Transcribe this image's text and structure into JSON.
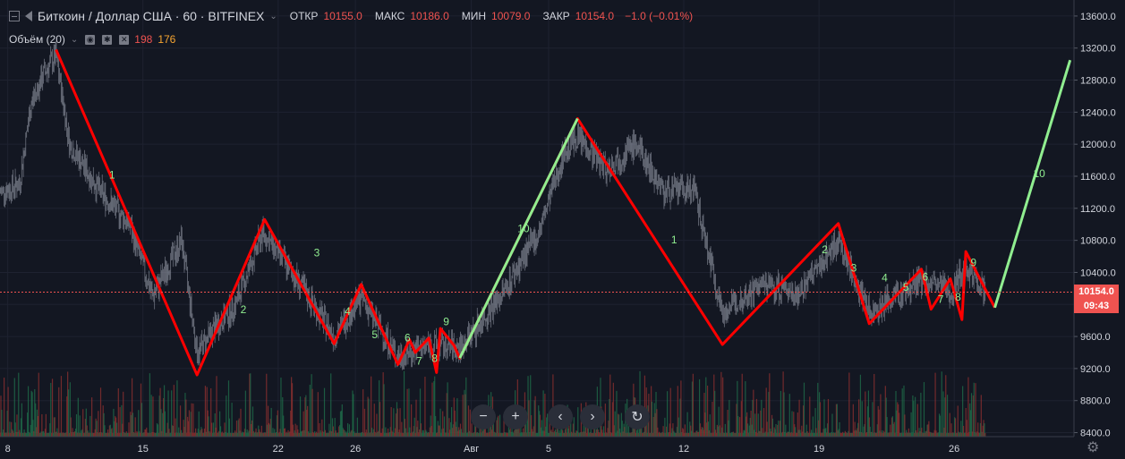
{
  "header": {
    "symbol": "Биткоин / Доллар США · 60 · BITFINEX",
    "open_label": "ОТКР",
    "open_value": "10155.0",
    "high_label": "МАКС",
    "high_value": "10186.0",
    "low_label": "МИН",
    "low_value": "10079.0",
    "close_label": "ЗАКР",
    "close_value": "10154.0",
    "change": "−1.0 (−0.01%)"
  },
  "volume_indicator": {
    "name": "Объём (20)",
    "value_red": "198",
    "value_orange": "176"
  },
  "price_tags": {
    "last_price": "10154.0",
    "countdown": "09:43"
  },
  "toolbar": {
    "zoom_out": "−",
    "zoom_in": "+",
    "scroll_left": "‹",
    "scroll_right": "›",
    "reset": "↻"
  },
  "colors": {
    "background": "#131722",
    "grid": "#1e2230",
    "axis_text": "#d1d4dc",
    "down_wave": "#ff0000",
    "up_wave": "#90ee90",
    "last_price": "#ef5350",
    "candles": "#8a8f9c",
    "vol_up": "#1f6b4a",
    "vol_down": "#8b2f2f"
  },
  "chart_data": {
    "type": "line",
    "y_axis": {
      "ticks": [
        8400,
        8800,
        9200,
        9600,
        10000,
        10400,
        10800,
        11200,
        11600,
        12000,
        12400,
        12800,
        13200,
        13600
      ],
      "tick_labels": [
        "8400.0",
        "8800.0",
        "9200.0",
        "9600.0",
        "10000.0",
        "10400.0",
        "10800.0",
        "11200.0",
        "11600.0",
        "12000.0",
        "12400.0",
        "12800.0",
        "13200.0",
        "13600.0"
      ],
      "ylim": [
        8350,
        13800
      ]
    },
    "x_axis": {
      "tick_labels": [
        "8",
        "15",
        "22",
        "26",
        "Авг",
        "5",
        "12",
        "19",
        "26"
      ],
      "tick_days": [
        8,
        15,
        22,
        26,
        32,
        36,
        43,
        50,
        57
      ],
      "xlim": [
        7.6,
        63.2
      ],
      "note_days": "days from July 1"
    },
    "wave_path_days": [
      [
        10.5,
        13180
      ],
      [
        17.8,
        9120
      ],
      [
        21.3,
        11060
      ],
      [
        24.9,
        9510
      ],
      [
        26.3,
        10250
      ],
      [
        28.2,
        9250
      ],
      [
        28.8,
        9560
      ],
      [
        29.1,
        9400
      ],
      [
        29.8,
        9580
      ],
      [
        30.2,
        9150
      ],
      [
        30.4,
        9700
      ],
      [
        31.1,
        9490
      ],
      [
        31.4,
        9330
      ],
      [
        37.5,
        12320
      ],
      [
        45.0,
        9500
      ],
      [
        51.0,
        11010
      ],
      [
        52.6,
        9760
      ],
      [
        55.3,
        10440
      ],
      [
        55.8,
        9940
      ],
      [
        56.8,
        10320
      ],
      [
        57.4,
        9810
      ],
      [
        57.6,
        10660
      ],
      [
        59.1,
        9960
      ]
    ],
    "projection_days": [
      [
        59.1,
        9960
      ],
      [
        63.0,
        13050
      ]
    ],
    "candle_anchor_days": [
      [
        7.6,
        11400
      ],
      [
        8.6,
        11500
      ],
      [
        9.2,
        12500
      ],
      [
        9.9,
        12900
      ],
      [
        10.5,
        13100
      ],
      [
        11.2,
        12000
      ],
      [
        12.8,
        11400
      ],
      [
        14.3,
        11000
      ],
      [
        15.5,
        10100
      ],
      [
        17.0,
        10800
      ],
      [
        17.8,
        9400
      ],
      [
        18.7,
        9700
      ],
      [
        19.8,
        10000
      ],
      [
        21.2,
        10900
      ],
      [
        23.0,
        10300
      ],
      [
        24.9,
        9600
      ],
      [
        26.3,
        10100
      ],
      [
        27.0,
        9800
      ],
      [
        28.2,
        9350
      ],
      [
        29.8,
        9500
      ],
      [
        31.4,
        9450
      ],
      [
        33.5,
        10100
      ],
      [
        35.5,
        10900
      ],
      [
        36.8,
        11900
      ],
      [
        37.5,
        12100
      ],
      [
        39.0,
        11700
      ],
      [
        40.5,
        12000
      ],
      [
        42.0,
        11400
      ],
      [
        43.5,
        11450
      ],
      [
        45.0,
        9900
      ],
      [
        47.0,
        10250
      ],
      [
        49.0,
        10150
      ],
      [
        51.0,
        10800
      ],
      [
        52.6,
        9900
      ],
      [
        54.0,
        10100
      ],
      [
        55.3,
        10300
      ],
      [
        56.8,
        10150
      ],
      [
        57.6,
        10500
      ],
      [
        58.6,
        10160
      ]
    ],
    "labels_down": [
      {
        "text": "1",
        "x": 13.4,
        "y": 11570
      },
      {
        "text": "2",
        "x": 20.2,
        "y": 9890
      },
      {
        "text": "3",
        "x": 24.0,
        "y": 10600
      },
      {
        "text": "4",
        "x": 25.6,
        "y": 9870
      },
      {
        "text": "5",
        "x": 27.0,
        "y": 9580
      },
      {
        "text": "6",
        "x": 28.7,
        "y": 9540
      },
      {
        "text": "7",
        "x": 29.3,
        "y": 9250
      },
      {
        "text": "8",
        "x": 30.1,
        "y": 9280
      },
      {
        "text": "9",
        "x": 30.7,
        "y": 9740
      }
    ],
    "labels_up": [
      {
        "text": "10",
        "x": 34.7,
        "y": 10900
      },
      {
        "text": "1",
        "x": 42.5,
        "y": 10760
      },
      {
        "text": "2",
        "x": 50.3,
        "y": 10640
      },
      {
        "text": "3",
        "x": 51.8,
        "y": 10410
      },
      {
        "text": "4",
        "x": 53.4,
        "y": 10290
      },
      {
        "text": "5",
        "x": 54.5,
        "y": 10170
      },
      {
        "text": "6",
        "x": 55.5,
        "y": 10300
      },
      {
        "text": "7",
        "x": 56.3,
        "y": 10020
      },
      {
        "text": "8",
        "x": 57.2,
        "y": 10050
      },
      {
        "text": "9",
        "x": 58.0,
        "y": 10480
      },
      {
        "text": "10",
        "x": 61.4,
        "y": 11590
      }
    ]
  }
}
